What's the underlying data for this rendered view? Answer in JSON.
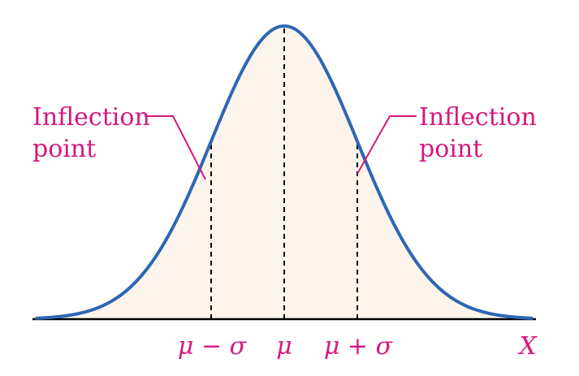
{
  "colors": {
    "curve": "#2e66b4",
    "fill": "#fdf5ec",
    "annotation": "#d6187c",
    "axis": "#000000",
    "dashed_line": "#000000"
  },
  "distribution": {
    "mean_label_mu": "μ",
    "mean_label_minus": " − ",
    "mean_label_plus": " + ",
    "std_label_sigma": "σ",
    "axis_variable": "X"
  },
  "annotations": {
    "left_line1": "Inflection",
    "left_line2": "point",
    "right_line1": "Inflection",
    "right_line2": "point"
  },
  "chart_data": {
    "type": "line",
    "x_range_in_sigma": [
      -3.4,
      3.4
    ],
    "mean": 0,
    "standard_deviation": 1,
    "tick_positions_in_sigma": [
      -1,
      0,
      1
    ],
    "inflection_points_in_sigma": [
      -1,
      1
    ],
    "grid": false
  }
}
